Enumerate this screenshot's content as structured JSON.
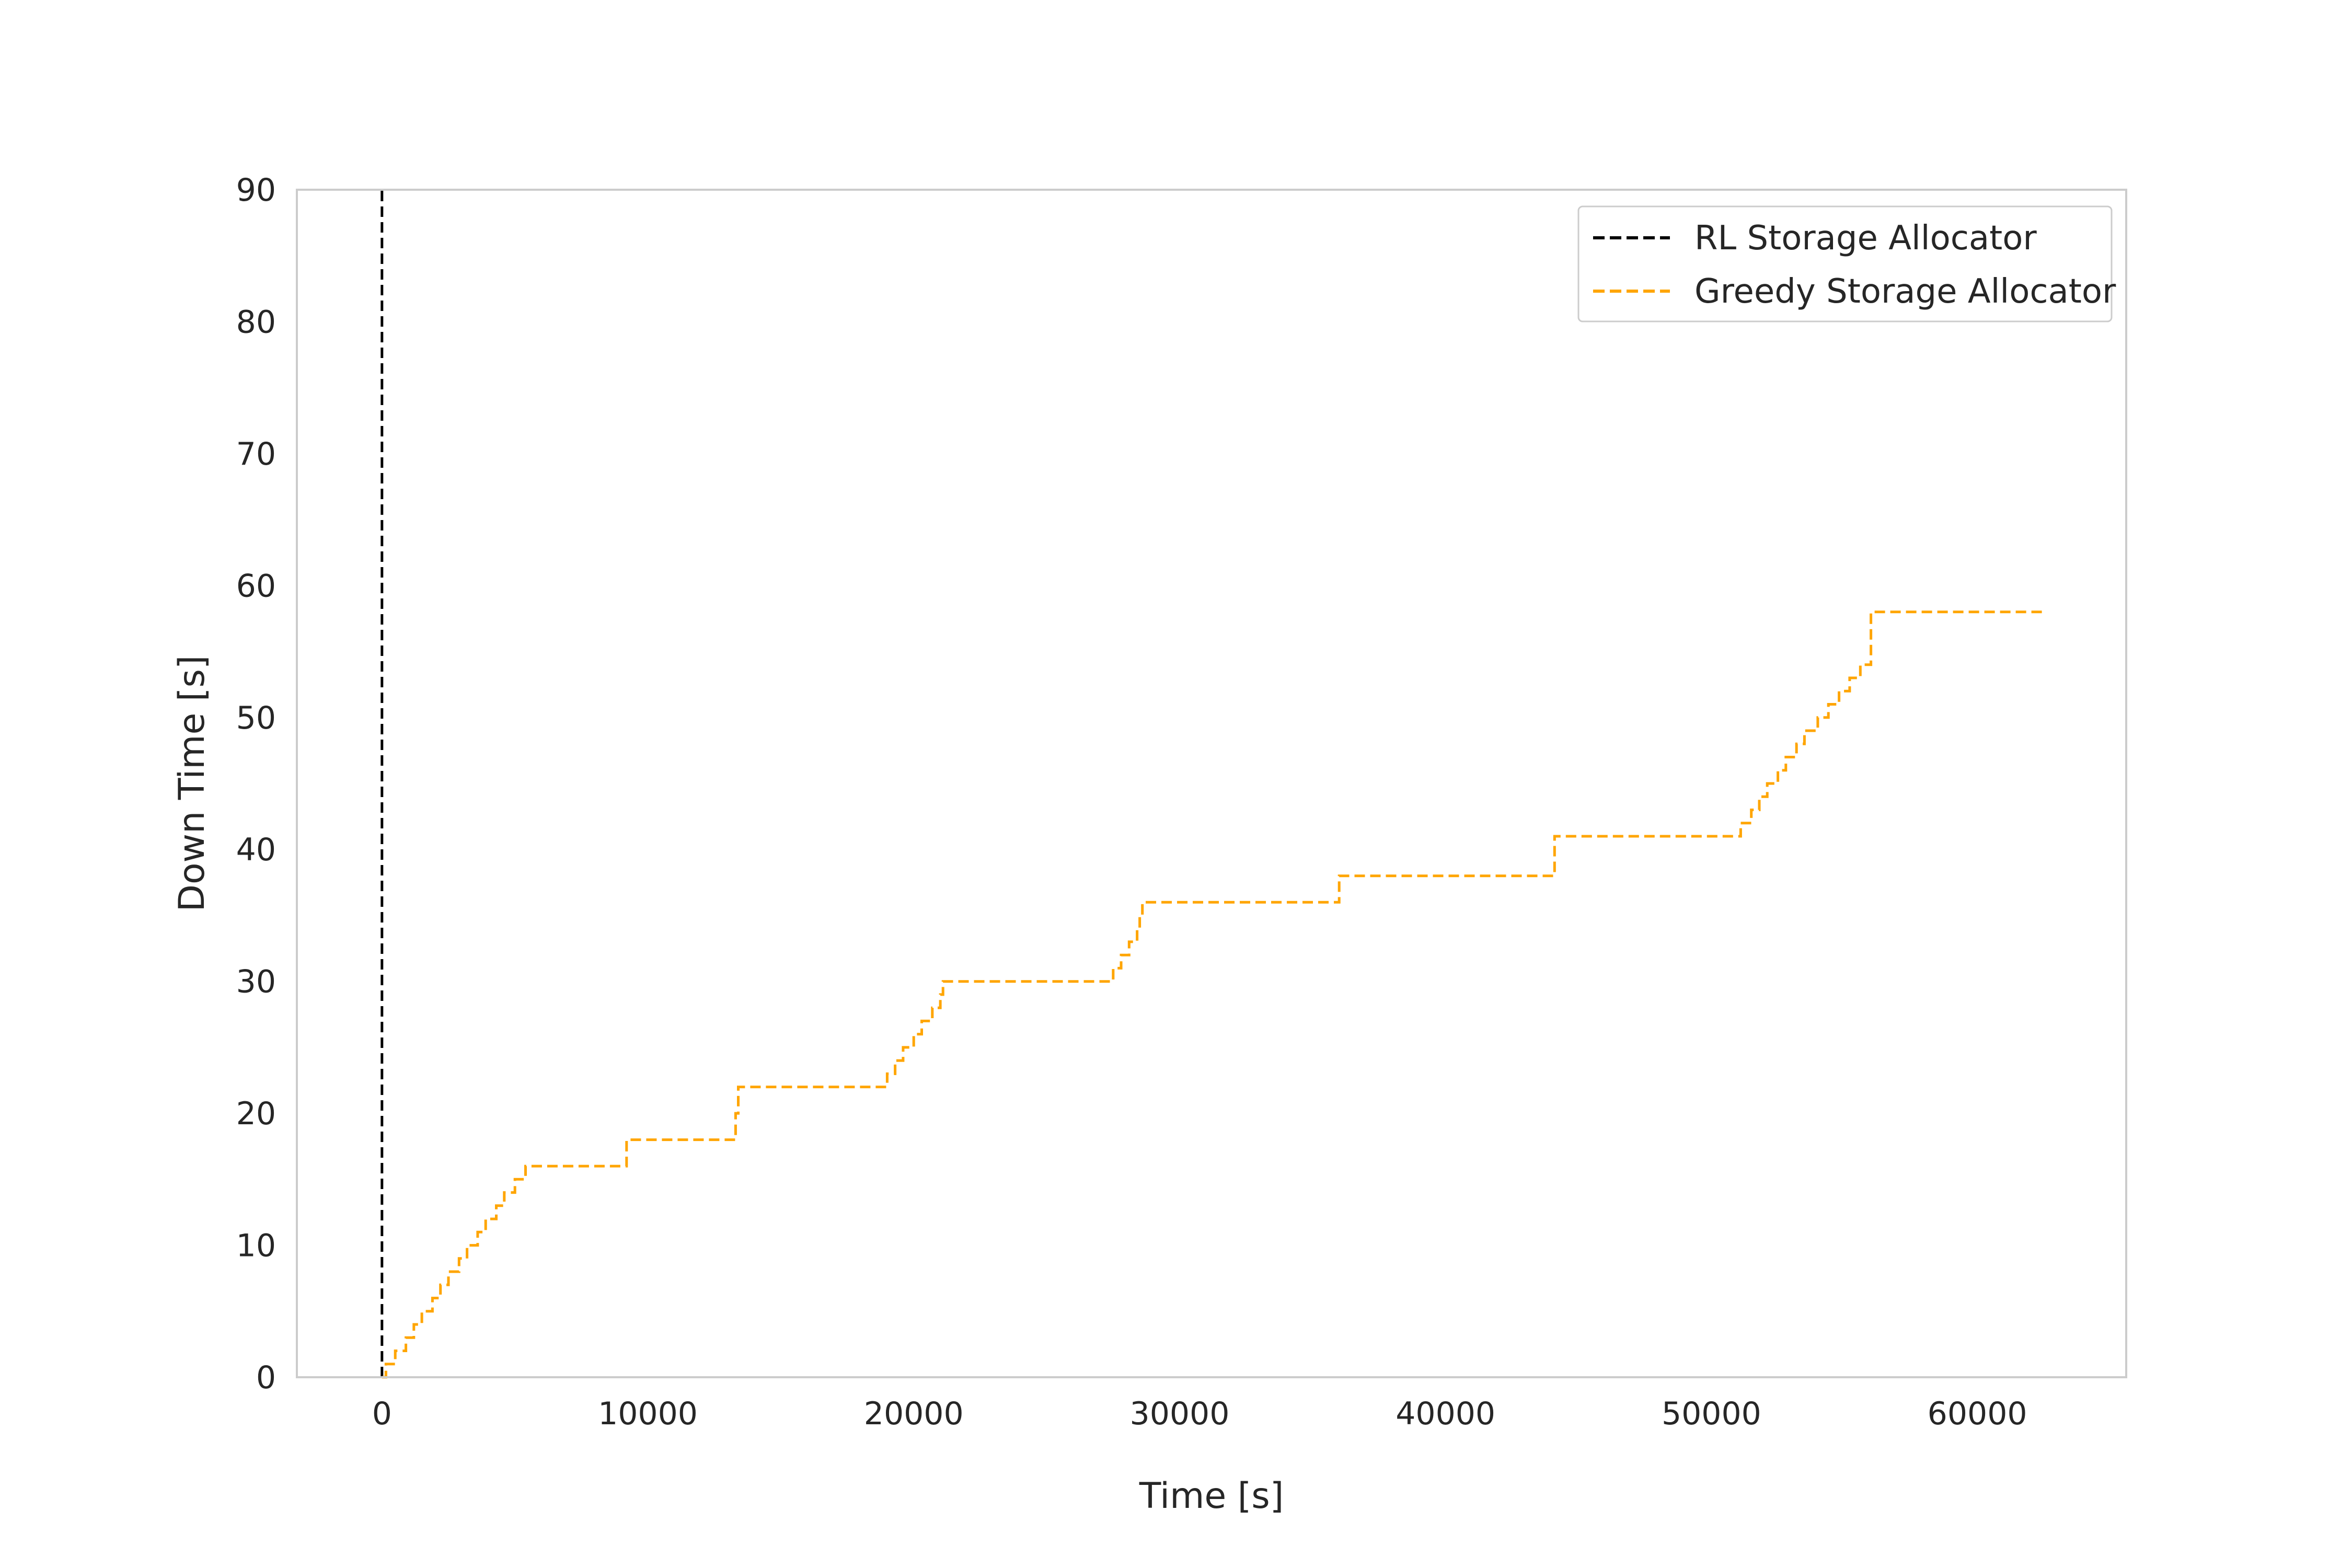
{
  "chart_data": {
    "type": "line",
    "title": "",
    "xlabel": "Time [s]",
    "ylabel": "Down Time [s]",
    "xlim": [
      -3200,
      65600
    ],
    "ylim": [
      0,
      90
    ],
    "x_ticks": [
      0,
      10000,
      20000,
      30000,
      40000,
      50000,
      60000
    ],
    "y_ticks": [
      0,
      10,
      20,
      30,
      40,
      50,
      60,
      70,
      80,
      90
    ],
    "grid": false,
    "legend_position": "top-right",
    "series": [
      {
        "name": "RL Storage Allocator",
        "color": "#000000",
        "line_style": "dashed",
        "step": true,
        "x": [
          0,
          0
        ],
        "y": [
          0,
          90
        ]
      },
      {
        "name": "Greedy Storage Allocator",
        "color": "#FFA500",
        "line_style": "dashed",
        "step": true,
        "x": [
          0,
          150,
          500,
          900,
          1200,
          1500,
          1900,
          2200,
          2500,
          2900,
          3200,
          3600,
          3900,
          4300,
          4600,
          5000,
          5400,
          5800,
          9200,
          13300,
          13400,
          19000,
          19300,
          19600,
          20000,
          20300,
          20700,
          21000,
          21100,
          27500,
          27800,
          28100,
          28400,
          28500,
          28600,
          36000,
          44100,
          51100,
          51500,
          51800,
          52100,
          52500,
          52800,
          53200,
          53500,
          54000,
          54400,
          54800,
          55200,
          55600,
          56000,
          62600
        ],
        "y": [
          0,
          1,
          2,
          3,
          4,
          5,
          6,
          7,
          8,
          9,
          10,
          11,
          12,
          13,
          14,
          15,
          16,
          16,
          18,
          20,
          22,
          23,
          24,
          25,
          26,
          27,
          28,
          29,
          30,
          31,
          32,
          33,
          34,
          35,
          36,
          38,
          41,
          42,
          43,
          44,
          45,
          46,
          47,
          48,
          49,
          50,
          51,
          52,
          53,
          54,
          58,
          58
        ]
      }
    ]
  }
}
